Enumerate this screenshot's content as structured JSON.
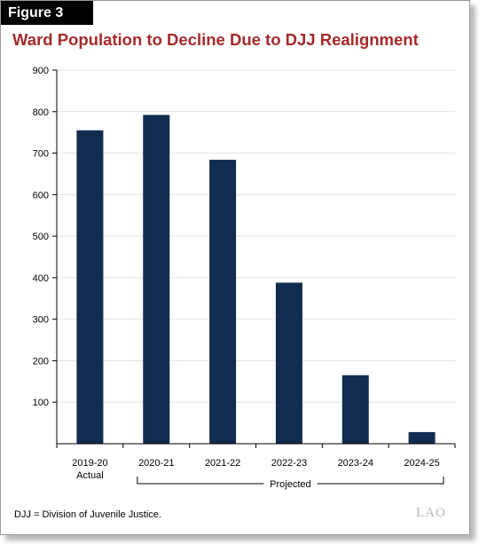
{
  "figure_label": "Figure 3",
  "logo_text": "LAO",
  "footnote": "DJJ = Division of Juvenile Justice.",
  "colors": {
    "bar": "#112c4f",
    "title": "#a52a2a",
    "grid": "#e2e2e2",
    "axis": "#000000"
  },
  "chart_data": {
    "type": "bar",
    "title": "Ward Population to Decline Due to DJJ Realignment",
    "xlabel": "",
    "ylabel": "",
    "categories": [
      "2019-20",
      "2020-21",
      "2021-22",
      "2022-23",
      "2023-24",
      "2024-25"
    ],
    "category_sublabels": [
      "Actual",
      "",
      "",
      "",
      "",
      ""
    ],
    "values": [
      755,
      792,
      684,
      388,
      165,
      28
    ],
    "ylim": [
      0,
      900
    ],
    "yticks": [
      100,
      200,
      300,
      400,
      500,
      600,
      700,
      800,
      900
    ],
    "grid": true,
    "legend": "none",
    "bracket": {
      "label": "Projected",
      "from": "2020-21",
      "to": "2024-25"
    }
  }
}
